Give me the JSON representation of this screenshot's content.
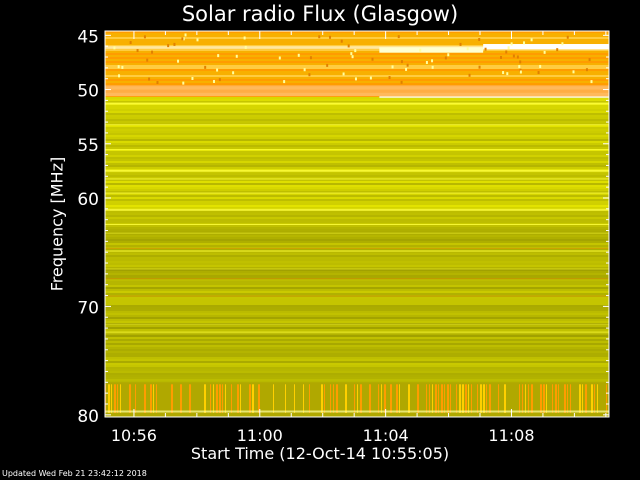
{
  "chart_data": {
    "type": "heatmap",
    "title": "Solar radio Flux (Glasgow)",
    "ylabel": "Frequency [MHz]",
    "xlabel": "Start Time (12-Oct-14 10:55:05)",
    "y_ticks": [
      45,
      50,
      55,
      60,
      70,
      80
    ],
    "y_tick_labels": [
      "45",
      "50",
      "55",
      "60",
      "70",
      "80"
    ],
    "y_range": [
      44.6,
      80.2
    ],
    "x_ticks": [
      "10:56",
      "11:00",
      "11:04",
      "11:08"
    ],
    "x_tick_minutes_after_10_55": [
      1,
      5,
      9,
      13
    ],
    "x_range_minutes_after_10_55": [
      0.08,
      16.1
    ],
    "colors": {
      "background": "#000000",
      "high": "#ff9c00",
      "mid": "#f0f000",
      "low": "#9c9c00"
    },
    "bands": [
      {
        "from": 44.6,
        "to": 46.0,
        "level": "high"
      },
      {
        "from": 46.0,
        "to": 46.2,
        "level": "saturated"
      },
      {
        "from": 46.2,
        "to": 49.6,
        "level": "high"
      },
      {
        "from": 49.6,
        "to": 50.6,
        "level": "saturated"
      },
      {
        "from": 50.6,
        "to": 62.0,
        "level": "mid"
      },
      {
        "from": 62.0,
        "to": 77.0,
        "level": "low"
      },
      {
        "from": 77.0,
        "to": 80.2,
        "level": "bursts"
      }
    ]
  },
  "footer": {
    "updated": "Updated Wed Feb 21 23:42:12 2018"
  }
}
